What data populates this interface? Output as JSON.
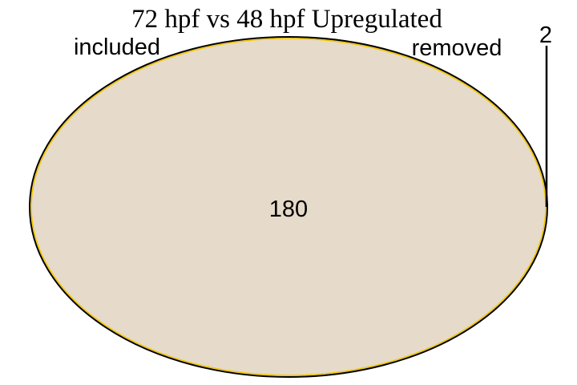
{
  "title": "72 hpf vs 48 hpf Upregulated",
  "sets": {
    "included": {
      "label": "included",
      "count": "180"
    },
    "removed": {
      "label": "removed",
      "count": "2"
    }
  },
  "colors": {
    "fill": "#E6DACA",
    "outline_included": "#000000",
    "outline_removed": "#F2C500",
    "leader": "#000000",
    "text": "#000000"
  }
}
